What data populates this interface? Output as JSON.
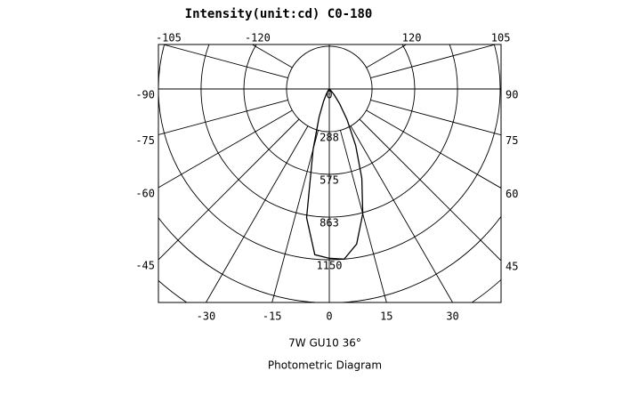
{
  "chart_data": {
    "type": "polar",
    "title": "Intensity(unit:cd)  C0-180",
    "subtitle": "7W    GU10 36°",
    "caption": "Photometric Diagram",
    "angle_ticks": [
      -120,
      -105,
      -90,
      -75,
      -60,
      -45,
      -30,
      -15,
      0,
      15,
      30,
      45,
      60,
      75,
      90,
      105,
      120
    ],
    "rlim": [
      0,
      1150
    ],
    "rticks": [
      0,
      288,
      575,
      863,
      1150
    ],
    "series": [
      {
        "color": "#000000",
        "x": [
          -45,
          -40,
          -35,
          -30,
          -25,
          -20,
          -15,
          -10,
          -5,
          0,
          5,
          10,
          15,
          20,
          25,
          30,
          35,
          40,
          45,
          50
        ],
        "values": [
          0,
          5,
          15,
          40,
          90,
          200,
          420,
          880,
          1120,
          1140,
          1150,
          1060,
          870,
          640,
          420,
          240,
          120,
          50,
          15,
          0
        ]
      }
    ]
  }
}
